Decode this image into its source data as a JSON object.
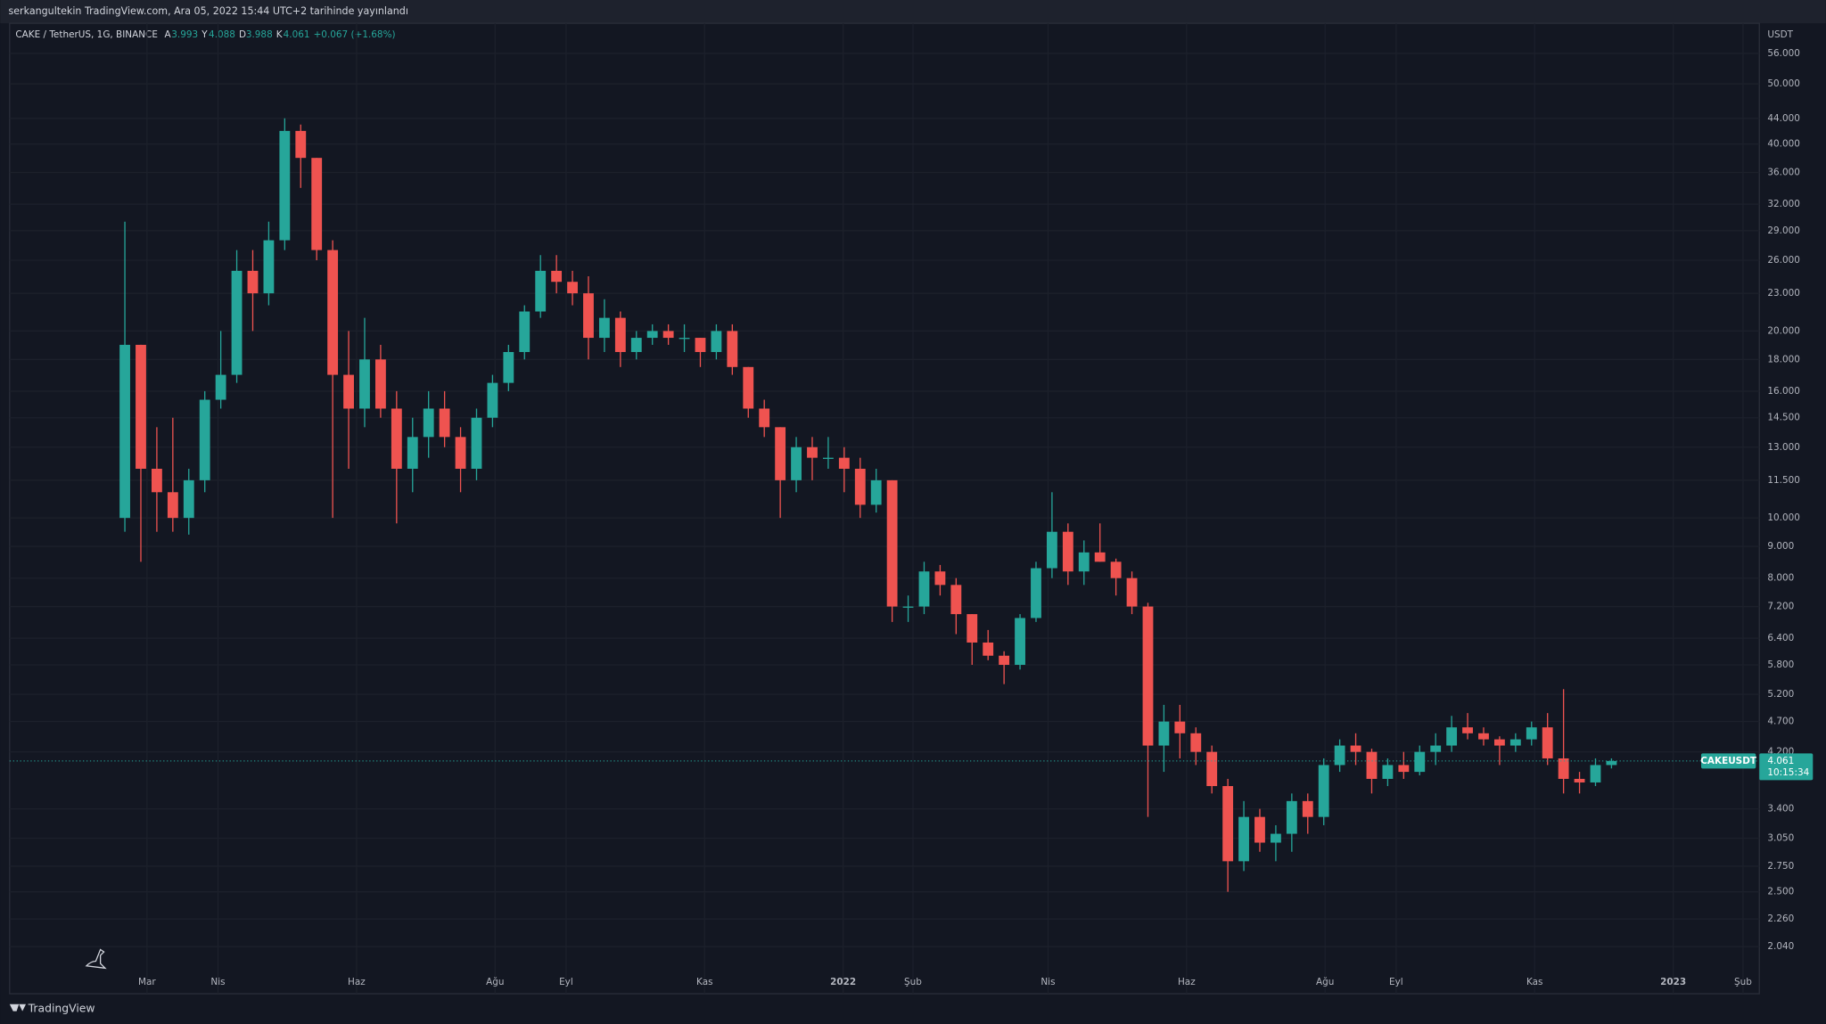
{
  "header": {
    "publisher": "serkangultekin TradingView.com, Ara 05, 2022 15:44 UTC+2 tarihinde yayınlandı"
  },
  "legend": {
    "symbol": "CAKE / TetherUS, 1G, BINANCE",
    "open": {
      "label": "A",
      "value": 3.993
    },
    "high": {
      "label": "Y",
      "value": 4.088
    },
    "low": {
      "label": "D",
      "value": 3.988
    },
    "close": {
      "label": "K",
      "value": 4.061
    },
    "change": "+0.067 (+1.68%)"
  },
  "chart_data": {
    "type": "candlestick",
    "log_scale": true,
    "grid": true,
    "up_color": "#26a69a",
    "down_color": "#ef5350",
    "y_unit": "USDT",
    "ylim": [
      1.9,
      62.6
    ],
    "yticks": [
      {
        "value": 56,
        "label": "56.000"
      },
      {
        "value": 50,
        "label": "50.000"
      },
      {
        "value": 44,
        "label": "44.000"
      },
      {
        "value": 40,
        "label": "40.000"
      },
      {
        "value": 36,
        "label": "36.000"
      },
      {
        "value": 32,
        "label": "32.000"
      },
      {
        "value": 29,
        "label": "29.000"
      },
      {
        "value": 26,
        "label": "26.000"
      },
      {
        "value": 23,
        "label": "23.000"
      },
      {
        "value": 20,
        "label": "20.000"
      },
      {
        "value": 18,
        "label": "18.000"
      },
      {
        "value": 16,
        "label": "16.000"
      },
      {
        "value": 14.5,
        "label": "14.500"
      },
      {
        "value": 13,
        "label": "13.000"
      },
      {
        "value": 11.5,
        "label": "11.500"
      },
      {
        "value": 10,
        "label": "10.000"
      },
      {
        "value": 9,
        "label": "9.000"
      },
      {
        "value": 8,
        "label": "8.000"
      },
      {
        "value": 7.2,
        "label": "7.200"
      },
      {
        "value": 6.4,
        "label": "6.400"
      },
      {
        "value": 5.8,
        "label": "5.800"
      },
      {
        "value": 5.2,
        "label": "5.200"
      },
      {
        "value": 4.7,
        "label": "4.700"
      },
      {
        "value": 4.2,
        "label": "4.200"
      },
      {
        "value": 3.4,
        "label": "3.400"
      },
      {
        "value": 3.05,
        "label": "3.050"
      },
      {
        "value": 2.75,
        "label": "2.750"
      },
      {
        "value": 2.5,
        "label": "2.500"
      },
      {
        "value": 2.26,
        "label": "2.260"
      },
      {
        "value": 2.04,
        "label": "2.040"
      }
    ],
    "xtick_labels": [
      "Mar",
      "Nis",
      "Haz",
      "Ağu",
      "Eyl",
      "Kas",
      "2022",
      "Şub",
      "Nis",
      "Haz",
      "Ağu",
      "Eyl",
      "Kas",
      "2023",
      "Şub"
    ],
    "series": {
      "name": "CAKEUSDT",
      "open": [
        10,
        19,
        12,
        11,
        10,
        11.5,
        15.5,
        17,
        25,
        23,
        28,
        42,
        38,
        27,
        17,
        15,
        18,
        15,
        12,
        13.5,
        15,
        13.5,
        12,
        14.5,
        16.5,
        18.5,
        21.5,
        25,
        24,
        23,
        19.5,
        21,
        18.5,
        19.5,
        20,
        19.5,
        19.5,
        18.5,
        20,
        17.5,
        15,
        14,
        11.5,
        13,
        12.5,
        12.5,
        12,
        10.5,
        11.5,
        7.2,
        7.2,
        8.2,
        7.8,
        7,
        6.3,
        6,
        5.8,
        6.9,
        8.3,
        9.5,
        8.2,
        8.8,
        8.5,
        8,
        7.2,
        4.3,
        4.7,
        4.5,
        4.2,
        3.7,
        2.8,
        3.3,
        3.0,
        3.1,
        3.5,
        3.3,
        4.0,
        4.3,
        4.2,
        3.8,
        4.0,
        3.9,
        4.2,
        4.3,
        4.6,
        4.5,
        4.4,
        4.3,
        4.4,
        4.6,
        4.1,
        3.8,
        3.75,
        4.0
      ],
      "high": [
        30,
        19,
        14,
        14.5,
        12,
        16,
        20,
        27,
        27,
        30,
        44,
        43,
        38,
        28,
        20,
        21,
        19,
        16,
        14.5,
        16,
        16,
        14,
        15,
        17,
        19,
        22,
        26.5,
        26.5,
        25,
        24.5,
        22.5,
        21.5,
        20,
        20.5,
        20.5,
        20.5,
        19.5,
        20.5,
        20.5,
        17.5,
        15.5,
        14,
        13.5,
        13.5,
        13.5,
        13,
        12.5,
        12,
        11.5,
        7.5,
        8.5,
        8.4,
        8,
        7,
        6.6,
        6.1,
        7,
        8.5,
        11,
        9.8,
        9.2,
        9.8,
        8.6,
        8.2,
        7.3,
        5,
        5,
        4.6,
        4.3,
        3.8,
        3.5,
        3.4,
        3.2,
        3.6,
        3.6,
        4.1,
        4.4,
        4.5,
        4.25,
        4.1,
        4.2,
        4.3,
        4.5,
        4.8,
        4.85,
        4.6,
        4.45,
        4.5,
        4.7,
        4.85,
        5.3,
        3.9,
        4.1,
        4.1
      ],
      "low": [
        9.5,
        8.5,
        9.5,
        9.5,
        9.4,
        11,
        15,
        16.5,
        20,
        22,
        27,
        34,
        26,
        10,
        12,
        14,
        14.5,
        9.8,
        11,
        12.5,
        13,
        11,
        11.5,
        14,
        16,
        18,
        21,
        23,
        22,
        18,
        18.5,
        17.5,
        18,
        19,
        19,
        18.5,
        17.5,
        18,
        17,
        14.5,
        13.5,
        10,
        11,
        11.5,
        12,
        11,
        10,
        10.2,
        6.8,
        6.8,
        7,
        7.5,
        6.5,
        5.8,
        5.9,
        5.4,
        5.7,
        6.8,
        8,
        7.8,
        7.8,
        8.5,
        7.5,
        7,
        3.3,
        3.9,
        4.1,
        4,
        3.6,
        2.5,
        2.7,
        2.9,
        2.8,
        2.9,
        3.1,
        3.2,
        3.9,
        4.0,
        3.6,
        3.7,
        3.8,
        3.85,
        4.0,
        4.2,
        4.4,
        4.3,
        4.0,
        4.2,
        4.3,
        4.0,
        3.6,
        3.6,
        3.7,
        3.95
      ],
      "close": [
        19,
        12,
        11,
        10,
        11.5,
        15.5,
        17,
        25,
        23,
        28,
        42,
        38,
        27,
        17,
        15,
        18,
        15,
        12,
        13.5,
        15,
        13.5,
        12,
        14.5,
        16.5,
        18.5,
        21.5,
        25,
        24,
        23,
        19.5,
        21,
        18.5,
        19.5,
        20,
        19.5,
        19.5,
        18.5,
        20,
        17.5,
        15,
        14,
        11.5,
        13,
        12.5,
        12.5,
        12,
        10.5,
        11.5,
        7.2,
        7.2,
        8.2,
        7.8,
        7,
        6.3,
        6,
        5.8,
        6.9,
        8.3,
        9.5,
        8.2,
        8.8,
        8.5,
        8,
        7.2,
        4.3,
        4.7,
        4.5,
        4.2,
        3.7,
        2.8,
        3.3,
        3.0,
        3.1,
        3.5,
        3.3,
        4.0,
        4.3,
        4.2,
        3.8,
        4.0,
        3.9,
        4.2,
        4.3,
        4.6,
        4.5,
        4.4,
        4.3,
        4.4,
        4.6,
        4.1,
        3.8,
        3.75,
        4.0,
        4.061
      ]
    },
    "last_price": {
      "symbol": "CAKEUSDT",
      "value": 4.061,
      "countdown": "10:15:34"
    }
  },
  "footer": {
    "brand": "TradingView"
  }
}
